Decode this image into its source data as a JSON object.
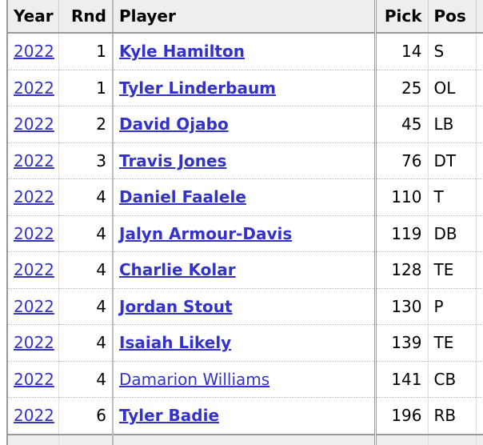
{
  "table": {
    "header": [
      "Year",
      "Rnd",
      "Player",
      "Pick",
      "Pos"
    ],
    "rows": [
      [
        2022,
        1,
        "Kyle Hamilton",
        14,
        "S"
      ],
      [
        2022,
        1,
        "Tyler Linderbaum",
        25,
        "OL"
      ],
      [
        2022,
        2,
        "David Ojabo",
        45,
        "LB"
      ],
      [
        2022,
        3,
        "Travis Jones",
        76,
        "DT"
      ],
      [
        2022,
        4,
        "Daniel Faalele",
        110,
        "T"
      ],
      [
        2022,
        4,
        "Jalyn Armour-Davis",
        119,
        "DB"
      ],
      [
        2022,
        4,
        "Charlie Kolar",
        128,
        "TE"
      ],
      [
        2022,
        4,
        "Jordan Stout",
        130,
        "P"
      ],
      [
        2022,
        4,
        "Isaiah Likely",
        139,
        "TE"
      ],
      [
        2022,
        4,
        "Damarion Williams",
        141,
        "CB"
      ],
      [
        2022,
        6,
        "Tyler Badie",
        196,
        "RB"
      ]
    ]
  }
}
